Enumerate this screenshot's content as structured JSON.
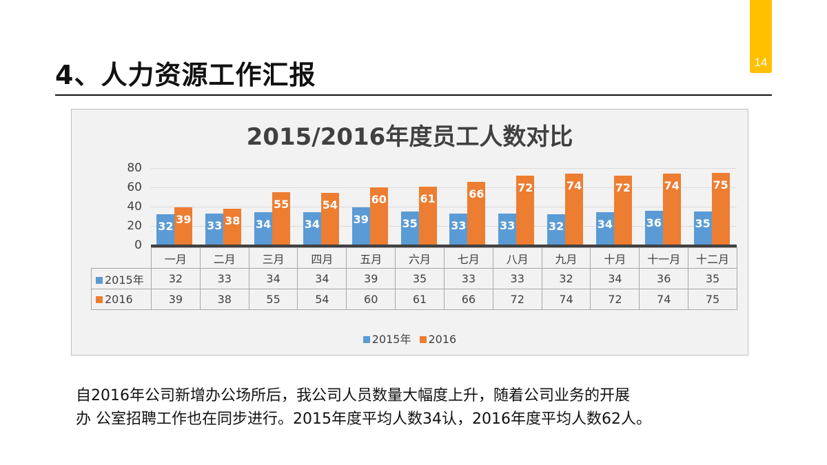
{
  "page": {
    "number": "14",
    "title": "4、人力资源工作汇报",
    "accent_color": "#FFC000"
  },
  "chart_data": {
    "type": "bar",
    "title": "2015/2016年度员工人数对比",
    "xlabel": "",
    "ylabel": "",
    "ylim": [
      0,
      80
    ],
    "yticks": [
      "80",
      "60",
      "40",
      "20",
      "0"
    ],
    "grid": true,
    "legend_position": "bottom",
    "categories": [
      "一月",
      "二月",
      "三月",
      "四月",
      "五月",
      "六月",
      "七月",
      "八月",
      "九月",
      "十月",
      "十一月",
      "十二月"
    ],
    "series": [
      {
        "name": "2015年",
        "color": "#5B9BD5",
        "values": [
          32,
          33,
          34,
          34,
          39,
          35,
          33,
          33,
          32,
          34,
          36,
          35
        ]
      },
      {
        "name": "2016",
        "color": "#ED7D31",
        "values": [
          39,
          38,
          55,
          54,
          60,
          61,
          66,
          72,
          74,
          72,
          74,
          75
        ]
      }
    ],
    "data_table": true
  },
  "caption": {
    "line1": "自2016年公司新增办公场所后，我公司人员数量大幅度上升，随着公司业务的开展",
    "line2": "办 公室招聘工作也在同步进行。2015年度平均人数34认，2016年度平均人数62人。"
  }
}
